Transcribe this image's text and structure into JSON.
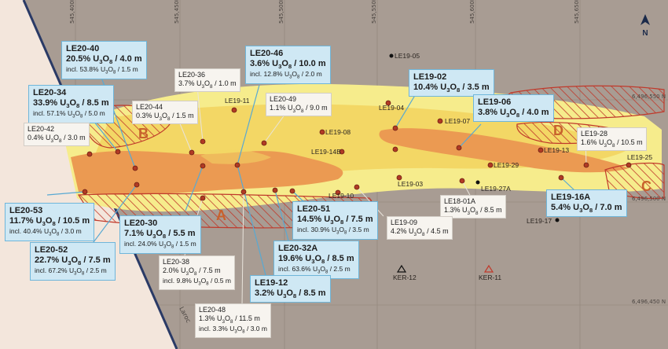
{
  "map": {
    "easting_labels": [
      "545,400E",
      "545,450E",
      "545,500E",
      "545,550E",
      "545,600E",
      "545,650E"
    ],
    "northing_labels": [
      "6,496,550 N",
      "6,496,500 N",
      "6,496,450 N"
    ],
    "north_label": "N",
    "road_label": "Laroc",
    "zones": [
      "A",
      "B",
      "C",
      "D"
    ],
    "holes": [
      {
        "id": "LE19-05"
      },
      {
        "id": "LE19-11"
      },
      {
        "id": "LE19-04"
      },
      {
        "id": "LE19-07"
      },
      {
        "id": "LE19-08"
      },
      {
        "id": "LE19-14B"
      },
      {
        "id": "LE19-13"
      },
      {
        "id": "LE19-29"
      },
      {
        "id": "LE19-25"
      },
      {
        "id": "LE19-03"
      },
      {
        "id": "LE19-27A"
      },
      {
        "id": "LE19-10"
      },
      {
        "id": "LE19-17"
      },
      {
        "id": "KER-12"
      },
      {
        "id": "KER-11"
      }
    ],
    "colors": {
      "background": "#a89c93",
      "west_area": "#f3e6dc",
      "outer_zone": "#f6ec8c",
      "high_grade": "#eb9a52",
      "hatch": "#c0392b",
      "callout_blue": "#cfe8f4",
      "callout_border": "#6fb6da",
      "drill_hole": "#b03a24",
      "zone_letter": "#c8622c"
    },
    "callouts": [
      {
        "hole": "LE20-40",
        "main": "20.5% U3O8 / 4.0 m",
        "incl": "incl. 53.8% U3O8 / 1.5 m",
        "style": "blue"
      },
      {
        "hole": "LE20-46",
        "main": "3.6% U3O8 / 10.0 m",
        "incl": "incl. 12.8% U3O8 / 2.0 m",
        "style": "blue"
      },
      {
        "hole": "LE20-36",
        "main": "3.7% U3O8 / 1.0 m",
        "incl": "",
        "style": "white"
      },
      {
        "hole": "LE20-34",
        "main": "33.9% U3O8 / 8.5 m",
        "incl": "incl. 57.1% U3O8 / 5.0 m",
        "style": "blue"
      },
      {
        "hole": "LE20-44",
        "main": "0.3% U3O8 / 1.5 m",
        "incl": "",
        "style": "white"
      },
      {
        "hole": "LE20-49",
        "main": "1.1% U3O8 / 9.0 m",
        "incl": "",
        "style": "white"
      },
      {
        "hole": "LE19-02",
        "main": "10.4% U3O8 / 3.5 m",
        "incl": "",
        "style": "blue"
      },
      {
        "hole": "LE19-06",
        "main": "3.8% U3O8 / 4.0 m",
        "incl": "",
        "style": "blue"
      },
      {
        "hole": "LE20-42",
        "main": "0.4% U3O8 / 3.0 m",
        "incl": "",
        "style": "white"
      },
      {
        "hole": "LE19-28",
        "main": "1.6% U3O8 / 10.5 m",
        "incl": "",
        "style": "white"
      },
      {
        "hole": "LE20-53",
        "main": "11.7% U3O8 / 10.5 m",
        "incl": "incl. 40.4% U3O8 / 3.0 m",
        "style": "blue"
      },
      {
        "hole": "LE20-30",
        "main": "7.1% U3O8 / 5.5 m",
        "incl": "incl. 24.0% U3O8 / 1.5 m",
        "style": "blue"
      },
      {
        "hole": "LE20-51",
        "main": "14.5% U3O8 / 7.5 m",
        "incl": "incl. 30.9% U3O8 / 3.5 m",
        "style": "blue"
      },
      {
        "hole": "LE18-01A",
        "main": "1.3% U3O8 / 8.5 m",
        "incl": "",
        "style": "white"
      },
      {
        "hole": "LE19-09",
        "main": "4.2% U3O8 / 4.5 m",
        "incl": "",
        "style": "white"
      },
      {
        "hole": "LE19-16A",
        "main": "5.4% U3O8 / 7.0 m",
        "incl": "",
        "style": "blue"
      },
      {
        "hole": "LE20-52",
        "main": "22.7% U3O8 / 7.5 m",
        "incl": "incl. 67.2% U3O8 / 2.5 m",
        "style": "blue"
      },
      {
        "hole": "LE20-38",
        "main": "2.0% U3O8 / 7.5 m",
        "incl": "incl. 9.8% U3O8 / 0.5 m",
        "style": "white"
      },
      {
        "hole": "LE20-32A",
        "main": "19.6% U3O8 / 8.5 m",
        "incl": "incl. 63.6% U3O8 / 2.5 m",
        "style": "blue"
      },
      {
        "hole": "LE19-12",
        "main": "3.2% U3O8 / 8.5 m",
        "incl": "",
        "style": "blue"
      },
      {
        "hole": "LE20-48",
        "main": "1.3% U3O8 / 11.5 m",
        "incl": "incl. 3.3% U3O8 / 3.0 m",
        "style": "white"
      }
    ]
  }
}
